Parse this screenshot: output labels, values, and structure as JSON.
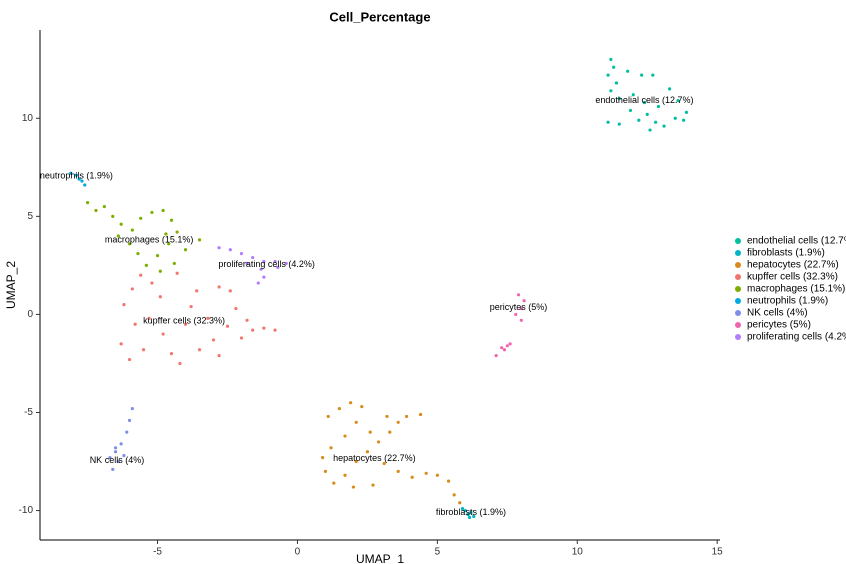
{
  "chart_data": {
    "type": "scatter",
    "title": "Cell_Percentage",
    "x_label": "UMAP_1",
    "y_label": "UMAP_2",
    "xlim": [
      -9.2,
      15.1
    ],
    "ylim": [
      -11.5,
      14.5
    ],
    "xticks": [
      -5,
      0,
      5,
      10,
      15
    ],
    "yticks": [
      -10,
      -5,
      0,
      5,
      10
    ],
    "grid": false,
    "legend": "right",
    "series": [
      {
        "name": "endothelial cells (12.7%)",
        "color": "#00BFA0",
        "x": [
          11.2,
          11.3,
          11.1,
          11.4,
          11.2,
          11.5,
          11.8,
          12.3,
          12.7,
          13.3,
          13.6,
          13.9,
          13.5,
          12.9,
          12.5,
          12.8,
          12.6,
          12.2,
          11.9,
          11.5,
          11.1,
          12.4,
          13.1,
          13.8,
          12.0
        ],
        "values": [
          13.0,
          12.6,
          12.2,
          11.8,
          11.4,
          11.0,
          12.4,
          12.2,
          12.2,
          11.5,
          10.9,
          10.3,
          10.0,
          10.6,
          10.2,
          9.8,
          9.4,
          9.9,
          10.4,
          9.7,
          9.8,
          10.8,
          9.6,
          9.9,
          11.2
        ]
      },
      {
        "name": "fibroblasts (1.9%)",
        "color": "#00B3C6",
        "x": [
          6.0,
          6.1,
          6.2,
          6.3,
          5.9,
          6.15
        ],
        "values": [
          -10.0,
          -10.2,
          -10.1,
          -10.3,
          -9.9,
          -10.35
        ]
      },
      {
        "name": "hepatocytes (22.7%)",
        "color": "#D98A1A",
        "x": [
          1.1,
          1.5,
          1.9,
          2.3,
          2.1,
          1.7,
          1.2,
          0.9,
          1.0,
          1.3,
          1.7,
          2.1,
          2.5,
          2.9,
          3.3,
          3.6,
          3.9,
          4.4,
          3.1,
          3.6,
          4.1,
          4.6,
          5.0,
          5.4,
          5.6,
          5.8,
          2.7,
          2.0,
          3.2,
          2.6
        ],
        "values": [
          -5.2,
          -4.8,
          -4.5,
          -4.7,
          -5.5,
          -6.2,
          -6.8,
          -7.3,
          -8.0,
          -8.6,
          -8.2,
          -7.5,
          -7.0,
          -6.5,
          -6.0,
          -5.5,
          -5.2,
          -5.1,
          -7.6,
          -8.0,
          -8.3,
          -8.1,
          -8.2,
          -8.5,
          -9.2,
          -9.6,
          -8.7,
          -8.8,
          -5.2,
          -6.0
        ]
      },
      {
        "name": "kupffer cells (32.3%)",
        "color": "#F0766E",
        "x": [
          -6.3,
          -6.0,
          -5.8,
          -6.2,
          -5.9,
          -5.6,
          -5.2,
          -4.9,
          -5.3,
          -4.8,
          -4.5,
          -4.2,
          -4.0,
          -3.8,
          -3.6,
          -4.3,
          -3.2,
          -3.0,
          -2.8,
          -2.5,
          -2.2,
          -2.0,
          -1.6,
          -1.2,
          -0.8,
          -2.8,
          -5.5,
          -3.5,
          -2.4,
          -1.8
        ],
        "values": [
          -1.5,
          -2.3,
          -0.5,
          0.5,
          1.3,
          2.0,
          1.6,
          0.9,
          -0.2,
          -1.0,
          -2.0,
          -2.5,
          -0.5,
          0.4,
          1.2,
          2.1,
          -0.2,
          -1.3,
          -2.1,
          -0.6,
          0.3,
          -1.2,
          -0.8,
          -0.7,
          -0.8,
          1.4,
          -1.8,
          -1.8,
          1.2,
          -0.3
        ]
      },
      {
        "name": "macrophages (15.1%)",
        "color": "#7CAE00",
        "x": [
          -7.5,
          -7.2,
          -6.9,
          -6.6,
          -6.3,
          -5.9,
          -5.6,
          -5.2,
          -4.8,
          -4.5,
          -4.3,
          -4.6,
          -5.0,
          -5.4,
          -4.9,
          -4.4,
          -4.0,
          -3.5,
          -6.0,
          -5.7,
          -6.4,
          -4.7
        ],
        "values": [
          5.7,
          5.3,
          5.5,
          5.0,
          4.6,
          4.3,
          4.9,
          5.2,
          5.3,
          4.8,
          4.2,
          3.6,
          3.0,
          2.5,
          2.2,
          2.6,
          3.3,
          3.8,
          3.6,
          3.1,
          4.0,
          4.1
        ]
      },
      {
        "name": "neutrophils (1.9%)",
        "color": "#00A9DF",
        "x": [
          -8.1,
          -7.9,
          -7.8,
          -7.7,
          -7.6
        ],
        "values": [
          7.2,
          7.1,
          6.9,
          6.8,
          6.6
        ]
      },
      {
        "name": "NK cells (4%)",
        "color": "#7F8FE8",
        "x": [
          -5.9,
          -6.0,
          -6.1,
          -6.3,
          -6.5,
          -6.7,
          -6.4,
          -6.6,
          -6.2,
          -6.5
        ],
        "values": [
          -4.8,
          -5.4,
          -6.0,
          -6.6,
          -7.0,
          -7.3,
          -7.5,
          -7.9,
          -7.2,
          -6.8
        ]
      },
      {
        "name": "pericytes (5%)",
        "color": "#F065B0",
        "x": [
          7.9,
          8.1,
          8.0,
          7.8,
          8.0,
          7.6,
          7.4,
          7.3,
          7.1,
          7.5
        ],
        "values": [
          1.0,
          0.7,
          0.3,
          0.0,
          -0.3,
          -1.5,
          -1.8,
          -1.7,
          -2.1,
          -1.6
        ]
      },
      {
        "name": "proliferating cells (4.2%)",
        "color": "#B57BFF",
        "x": [
          -2.8,
          -2.4,
          -2.0,
          -1.6,
          -1.2,
          -0.8,
          -0.4,
          -1.3,
          -1.2,
          -1.4,
          -0.7,
          -1.8
        ],
        "values": [
          3.4,
          3.3,
          3.1,
          2.9,
          2.7,
          2.7,
          2.6,
          2.3,
          1.9,
          1.6,
          2.4,
          2.6
        ]
      }
    ],
    "annotations": [
      {
        "text": "endothelial cells (12.7%)",
        "x": 12.4,
        "y": 10.9
      },
      {
        "text": "fibroblasts (1.9%)",
        "x": 6.2,
        "y": -10.1
      },
      {
        "text": "hepatocytes (22.7%)",
        "x": 2.75,
        "y": -7.35
      },
      {
        "text": "kupffer cells (32.3%)",
        "x": -4.05,
        "y": -0.35
      },
      {
        "text": "macrophages (15.1%)",
        "x": -5.3,
        "y": 3.8
      },
      {
        "text": "neutrophils (1.9%)",
        "x": -7.9,
        "y": 7.05
      },
      {
        "text": "NK cells (4%)",
        "x": -6.45,
        "y": -7.45
      },
      {
        "text": "pericytes (5%)",
        "x": 7.9,
        "y": 0.35
      },
      {
        "text": "proliferating cells (4.2%)",
        "x": -1.1,
        "y": 2.55
      }
    ]
  }
}
